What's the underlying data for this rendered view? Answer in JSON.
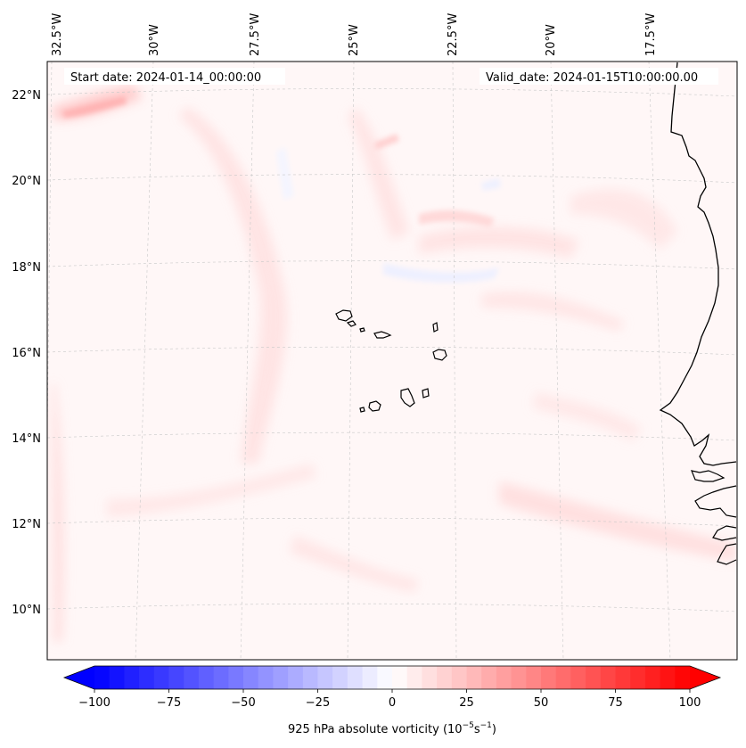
{
  "header": {
    "start_date": "Start date: 2024-01-14_00:00:00",
    "valid_date": "Valid_date: 2024-01-15T10:00:00.00"
  },
  "axes": {
    "lon_labels": [
      "32.5°W",
      "30°W",
      "27.5°W",
      "25°W",
      "22.5°W",
      "20°W",
      "17.5°W"
    ],
    "lat_labels": [
      "22°N",
      "20°N",
      "18°N",
      "16°N",
      "14°N",
      "12°N",
      "10°N"
    ]
  },
  "colorbar": {
    "label_prefix": "925 hPa absolute vorticity (10",
    "label_exp1": "−5",
    "label_mid": "s",
    "label_exp2": "−1",
    "label_suffix": ")",
    "range": [
      -100,
      100
    ],
    "ticks": [
      "−100",
      "−75",
      "−50",
      "−25",
      "0",
      "25",
      "50",
      "75",
      "100"
    ],
    "colors": {
      "negative": "#0000ff",
      "zero": "#ffffff",
      "positive": "#ff0000"
    }
  },
  "map": {
    "projection": "lambert-conformal",
    "gridlines": true,
    "coastline_color": "#000000",
    "background_color": "#fff7f7"
  }
}
